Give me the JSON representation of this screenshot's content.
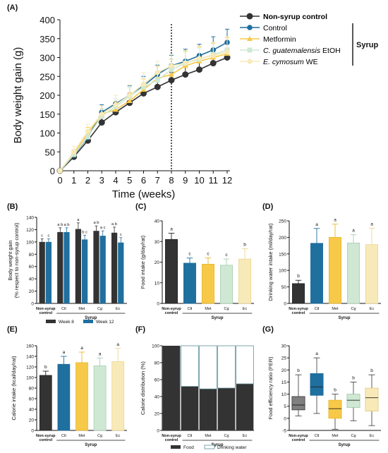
{
  "colors": {
    "nonsyrup": "#333333",
    "control": "#1f6f9f",
    "metformin": "#f7c948",
    "cg": "#cfe8d4",
    "ec": "#f8eab8",
    "food": "#333333",
    "water": "#ffffff"
  },
  "panel_labels": [
    "(A)",
    "(B)",
    "(C)",
    "(D)",
    "(E)",
    "(F)",
    "(G)"
  ],
  "legend_top": {
    "entries": [
      "Non-syrup control",
      "Control",
      "Metformin",
      "C. guatemalensis EtOH",
      "E. cymosum WE"
    ],
    "italic_prefixes": [
      "",
      "",
      "",
      "C. guatemalensis",
      "E. cymosum"
    ],
    "group_label": "Syrup"
  },
  "small_common": {
    "x_first": "Non-syrup",
    "x_first_line2": "control",
    "x_ticks": [
      "Ctl",
      "Met",
      "Cg",
      "Ec"
    ],
    "group_label": "Syrup"
  },
  "chart_data": [
    {
      "panel": "A",
      "type": "line",
      "xlabel": "Time (weeks)",
      "ylabel": "Body weight gain (g)",
      "x": [
        0,
        1,
        2,
        3,
        4,
        5,
        6,
        7,
        8,
        9,
        10,
        11,
        12
      ],
      "xlim": [
        0,
        12
      ],
      "ylim": [
        0,
        400
      ],
      "yticks": [
        0,
        50,
        100,
        150,
        200,
        250,
        300,
        350,
        400
      ],
      "vline_x": 8,
      "series": [
        {
          "name": "Non-syrup control",
          "values": [
            0,
            37,
            80,
            128,
            155,
            180,
            205,
            222,
            240,
            255,
            268,
            285,
            300
          ],
          "err": [
            0,
            5,
            6,
            12,
            12,
            15,
            18,
            18,
            20,
            22,
            22,
            24,
            25
          ]
        },
        {
          "name": "Control",
          "values": [
            0,
            42,
            88,
            155,
            178,
            200,
            225,
            255,
            278,
            290,
            305,
            320,
            340
          ],
          "err": [
            0,
            8,
            10,
            20,
            22,
            25,
            25,
            25,
            28,
            32,
            30,
            35,
            35
          ]
        },
        {
          "name": "Metformin",
          "values": [
            0,
            45,
            100,
            150,
            162,
            185,
            215,
            245,
            255,
            278,
            290,
            300,
            310
          ],
          "err": [
            0,
            10,
            15,
            15,
            20,
            22,
            28,
            32,
            40,
            40,
            38,
            38,
            42
          ]
        },
        {
          "name": "C. guatemalensis EtOH",
          "values": [
            0,
            43,
            90,
            145,
            170,
            198,
            222,
            240,
            268,
            285,
            295,
            308,
            320
          ],
          "err": [
            0,
            8,
            12,
            20,
            20,
            22,
            25,
            25,
            28,
            30,
            30,
            32,
            35
          ]
        },
        {
          "name": "E. cymosum WE",
          "values": [
            0,
            50,
            105,
            150,
            175,
            200,
            230,
            260,
            278,
            285,
            298,
            305,
            315
          ],
          "err": [
            0,
            15,
            18,
            22,
            25,
            28,
            30,
            30,
            30,
            32,
            33,
            35,
            40
          ]
        }
      ]
    },
    {
      "panel": "B",
      "type": "bar",
      "ylabel": "Body weight gain",
      "ylabel2": "(% respect to non-syrup control)",
      "ylim": [
        0,
        140
      ],
      "yticks": [
        0,
        20,
        40,
        60,
        80,
        100,
        120,
        140
      ],
      "categories": [
        "Non-syrup control",
        "Ctl",
        "Met",
        "Cg",
        "Ec"
      ],
      "legend": [
        "Week 8",
        "Week 12"
      ],
      "series": [
        {
          "name": "Week 8",
          "values": [
            100,
            116,
            121,
            118,
            115
          ],
          "err": [
            5,
            7,
            10,
            8,
            9
          ],
          "letters": [
            "c",
            "a b",
            "a",
            "a b",
            "a b"
          ]
        },
        {
          "name": "Week 12",
          "values": [
            100,
            116,
            104,
            110,
            99
          ],
          "err": [
            5,
            7,
            7,
            8,
            8
          ],
          "letters": [
            "c",
            "a b",
            "b c",
            "a c",
            "c"
          ]
        }
      ]
    },
    {
      "panel": "C",
      "type": "bar",
      "ylabel": "Food intake (g/day/rat)",
      "ylim": [
        0,
        40
      ],
      "yticks": [
        0,
        10,
        20,
        30,
        40
      ],
      "categories": [
        "Non-syrup control",
        "Ctl",
        "Met",
        "Cg",
        "Ec"
      ],
      "values": [
        31,
        19.5,
        19,
        18.5,
        21.5
      ],
      "err": [
        3,
        2.5,
        3,
        3,
        5
      ],
      "letters": [
        "a",
        "c",
        "c",
        "c",
        "b"
      ]
    },
    {
      "panel": "D",
      "type": "bar",
      "ylabel": "Drinking water intake (ml/day/rat)",
      "ylim": [
        0,
        250
      ],
      "yticks": [
        0,
        50,
        100,
        150,
        200,
        250
      ],
      "categories": [
        "Non-syrup control",
        "Ctl",
        "Met",
        "Cg",
        "Ec"
      ],
      "values": [
        60,
        182,
        200,
        183,
        178
      ],
      "err": [
        10,
        45,
        40,
        25,
        50
      ],
      "letters": [
        "b",
        "a",
        "a",
        "a",
        "a"
      ]
    },
    {
      "panel": "E",
      "type": "bar",
      "ylabel": "Calorie intake (kcal/day/rat)",
      "ylim": [
        0,
        160
      ],
      "yticks": [
        0,
        20,
        40,
        60,
        80,
        100,
        120,
        140,
        160
      ],
      "categories": [
        "Non-syrup control",
        "Ctl",
        "Met",
        "Cg",
        "Ec"
      ],
      "values": [
        104,
        125,
        128,
        122,
        130
      ],
      "err": [
        8,
        15,
        20,
        15,
        25
      ],
      "letters": [
        "b",
        "a",
        "a",
        "a",
        "a"
      ]
    },
    {
      "panel": "F",
      "type": "bar",
      "stacked": true,
      "ylabel": "Calorie distribution (%)",
      "ylim": [
        0,
        100
      ],
      "yticks": [
        0,
        20,
        40,
        60,
        80,
        100
      ],
      "categories": [
        "Non-syrup control",
        "Ctl",
        "Met",
        "Cg",
        "Ec"
      ],
      "legend": [
        "Food",
        "Drinking water"
      ],
      "series": [
        {
          "name": "Food",
          "values": [
            100,
            52,
            49,
            50,
            55
          ]
        },
        {
          "name": "Drinking water",
          "values": [
            0,
            48,
            51,
            50,
            45
          ]
        }
      ]
    },
    {
      "panel": "G",
      "type": "box",
      "ylabel": "Food efficiency ratio (FER)",
      "ylim": [
        -5,
        30
      ],
      "yticks": [
        -5,
        0,
        5,
        10,
        15,
        20,
        25,
        30
      ],
      "categories": [
        "Non-syrup control",
        "Ctl",
        "Met",
        "Cg",
        "Ec"
      ],
      "boxes": [
        {
          "min": 1,
          "q1": 3.5,
          "median": 5.5,
          "q3": 9,
          "max": 18
        },
        {
          "min": 2,
          "q1": 9.5,
          "median": 13,
          "q3": 18.5,
          "max": 25
        },
        {
          "min": -4.5,
          "q1": 0,
          "median": 4,
          "q3": 7.5,
          "max": 10
        },
        {
          "min": -1,
          "q1": 4.5,
          "median": 7.5,
          "q3": 10,
          "max": 15
        },
        {
          "min": -3,
          "q1": 3,
          "median": 8.5,
          "q3": 12.5,
          "max": 18
        }
      ],
      "letters": [
        "b",
        "a",
        "b",
        "b",
        "b"
      ]
    }
  ]
}
